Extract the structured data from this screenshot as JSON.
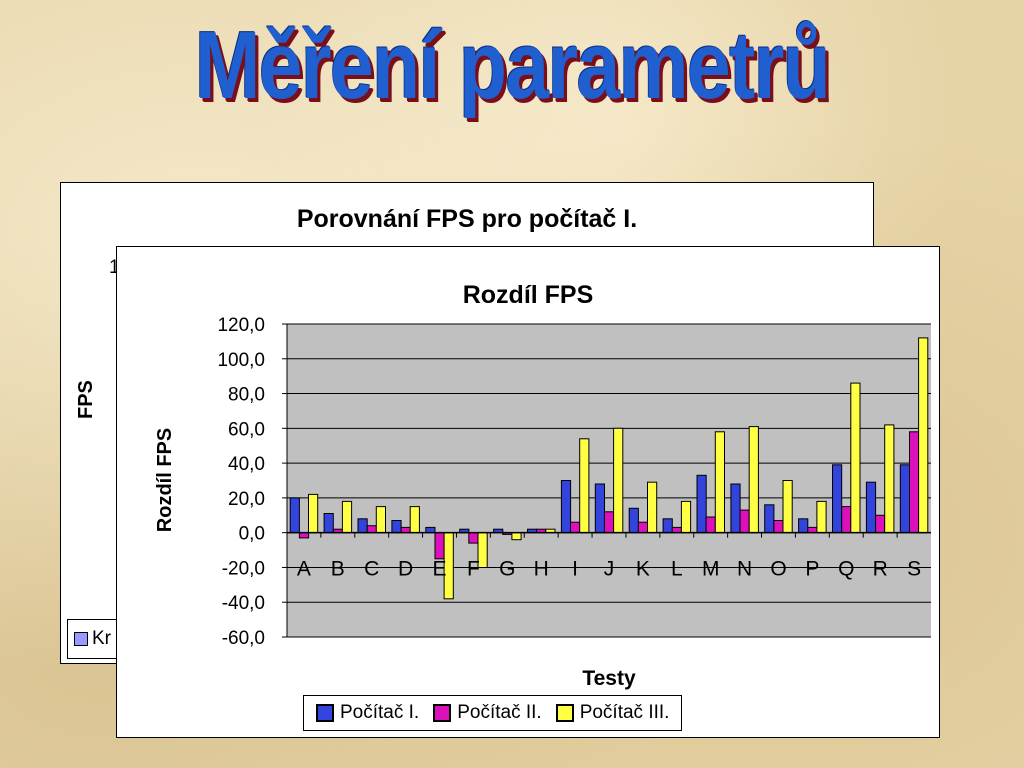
{
  "slide": {
    "title": "Měření parametrů"
  },
  "back_chart": {
    "title": "Porovnání FPS pro počítač I.",
    "ylabel": "FPS",
    "visible_tick": "1",
    "legend_text": "Kr"
  },
  "colors": {
    "title_blue": "#1f5fd0",
    "title_shadow": "#7a0f1c",
    "plot_area": "#c0c0c0",
    "pc1": "#3344dd",
    "pc2": "#dd11bb",
    "pc3": "#ffff44"
  },
  "chart_data": {
    "type": "bar",
    "title": "Rozdíl FPS",
    "xlabel": "Testy",
    "ylabel": "Rozdíl FPS",
    "ylim": [
      -60,
      120
    ],
    "ytick_step": 20,
    "ytick_labels": [
      "120,0",
      "100,0",
      "80,0",
      "60,0",
      "40,0",
      "20,0",
      "0,0",
      "-20,0",
      "-40,0",
      "-60,0"
    ],
    "grid": true,
    "legend_position": "bottom",
    "categories": [
      "A",
      "B",
      "C",
      "D",
      "E",
      "F",
      "G",
      "H",
      "I",
      "J",
      "K",
      "L",
      "M",
      "N",
      "O",
      "P",
      "Q",
      "R",
      "S"
    ],
    "series": [
      {
        "name": "Počítač I.",
        "color": "#3344dd",
        "values": [
          20,
          11,
          8,
          7,
          3,
          2,
          2,
          2,
          30,
          28,
          14,
          8,
          33,
          28,
          16,
          8,
          39,
          29,
          39
        ]
      },
      {
        "name": "Počítač II.",
        "color": "#dd11bb",
        "values": [
          -3,
          2,
          4,
          3,
          -15,
          -6,
          -1,
          2,
          6,
          12,
          6,
          3,
          9,
          13,
          7,
          3,
          15,
          10,
          58
        ]
      },
      {
        "name": "Počítač III.",
        "color": "#ffff44",
        "values": [
          22,
          18,
          15,
          15,
          -38,
          -20,
          -4,
          2,
          54,
          60,
          29,
          18,
          58,
          61,
          30,
          18,
          86,
          62,
          112
        ]
      }
    ]
  }
}
